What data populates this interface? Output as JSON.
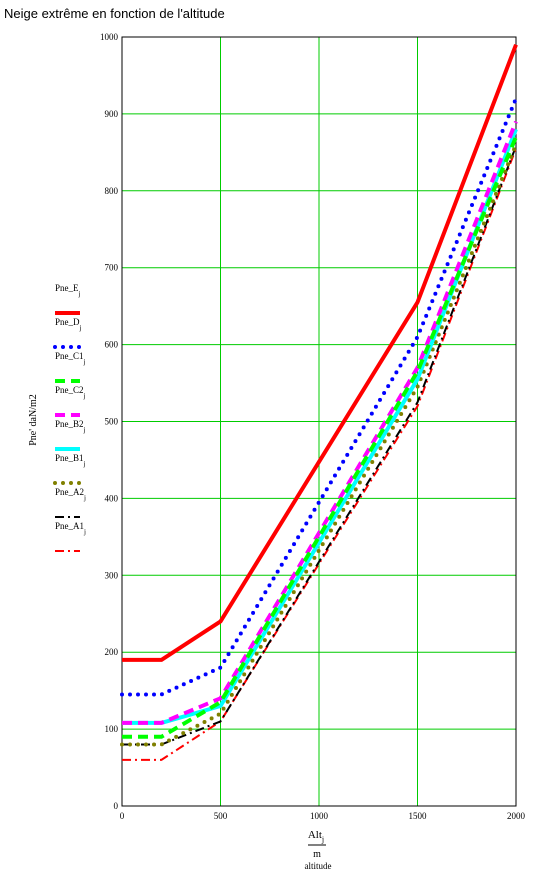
{
  "chart_data": {
    "type": "line",
    "title": "Neige extrême en fonction de l'altitude",
    "y_axis_label": "Pne' daN/m2",
    "x_axis_label": {
      "numerator": "Alt",
      "numerator_sub": "j",
      "denominator": "m",
      "note": "altitude"
    },
    "xlim": [
      0,
      2000
    ],
    "ylim": [
      0,
      1000
    ],
    "x_ticks": [
      0,
      500,
      1000,
      1500,
      2000
    ],
    "y_ticks": [
      0,
      100,
      200,
      300,
      400,
      500,
      600,
      700,
      800,
      900,
      1000
    ],
    "grid": true,
    "grid_color": "#00cc00",
    "legend_position": "left",
    "series": [
      {
        "name": "Pne_E",
        "sub": "j",
        "color": "#ff0000",
        "style": "solid",
        "x": [
          0,
          200,
          500,
          1500,
          2000
        ],
        "values": [
          190,
          190,
          240,
          655,
          990
        ]
      },
      {
        "name": "Pne_D",
        "sub": "j",
        "color": "#0000ff",
        "style": "dotted",
        "x": [
          0,
          200,
          500,
          1500,
          2000
        ],
        "values": [
          145,
          145,
          180,
          610,
          920
        ]
      },
      {
        "name": "Pne_C1",
        "sub": "j",
        "color": "#00ff00",
        "style": "dash",
        "x": [
          0,
          200,
          500,
          1500,
          2000
        ],
        "values": [
          90,
          90,
          135,
          565,
          870
        ]
      },
      {
        "name": "Pne_C2",
        "sub": "j",
        "color": "#ff00ff",
        "style": "dash",
        "x": [
          0,
          200,
          500,
          1500,
          2000
        ],
        "values": [
          108,
          108,
          140,
          570,
          890
        ]
      },
      {
        "name": "Pne_B2",
        "sub": "j",
        "color": "#00ffff",
        "style": "solid",
        "x": [
          0,
          200,
          500,
          1500,
          2000
        ],
        "values": [
          108,
          108,
          130,
          555,
          880
        ]
      },
      {
        "name": "Pne_B1",
        "sub": "j",
        "color": "#808000",
        "style": "dotted",
        "x": [
          0,
          200,
          500,
          1500,
          2000
        ],
        "values": [
          80,
          80,
          120,
          545,
          860
        ]
      },
      {
        "name": "Pne_A2",
        "sub": "j",
        "color": "#000000",
        "style": "dashdot",
        "x": [
          0,
          200,
          500,
          1500,
          2000
        ],
        "values": [
          80,
          80,
          110,
          525,
          858
        ]
      },
      {
        "name": "Pne_A1",
        "sub": "j",
        "color": "#ff0000",
        "style": "dashdot",
        "x": [
          0,
          200,
          500,
          1500,
          2000
        ],
        "values": [
          60,
          60,
          110,
          520,
          855
        ]
      }
    ]
  }
}
